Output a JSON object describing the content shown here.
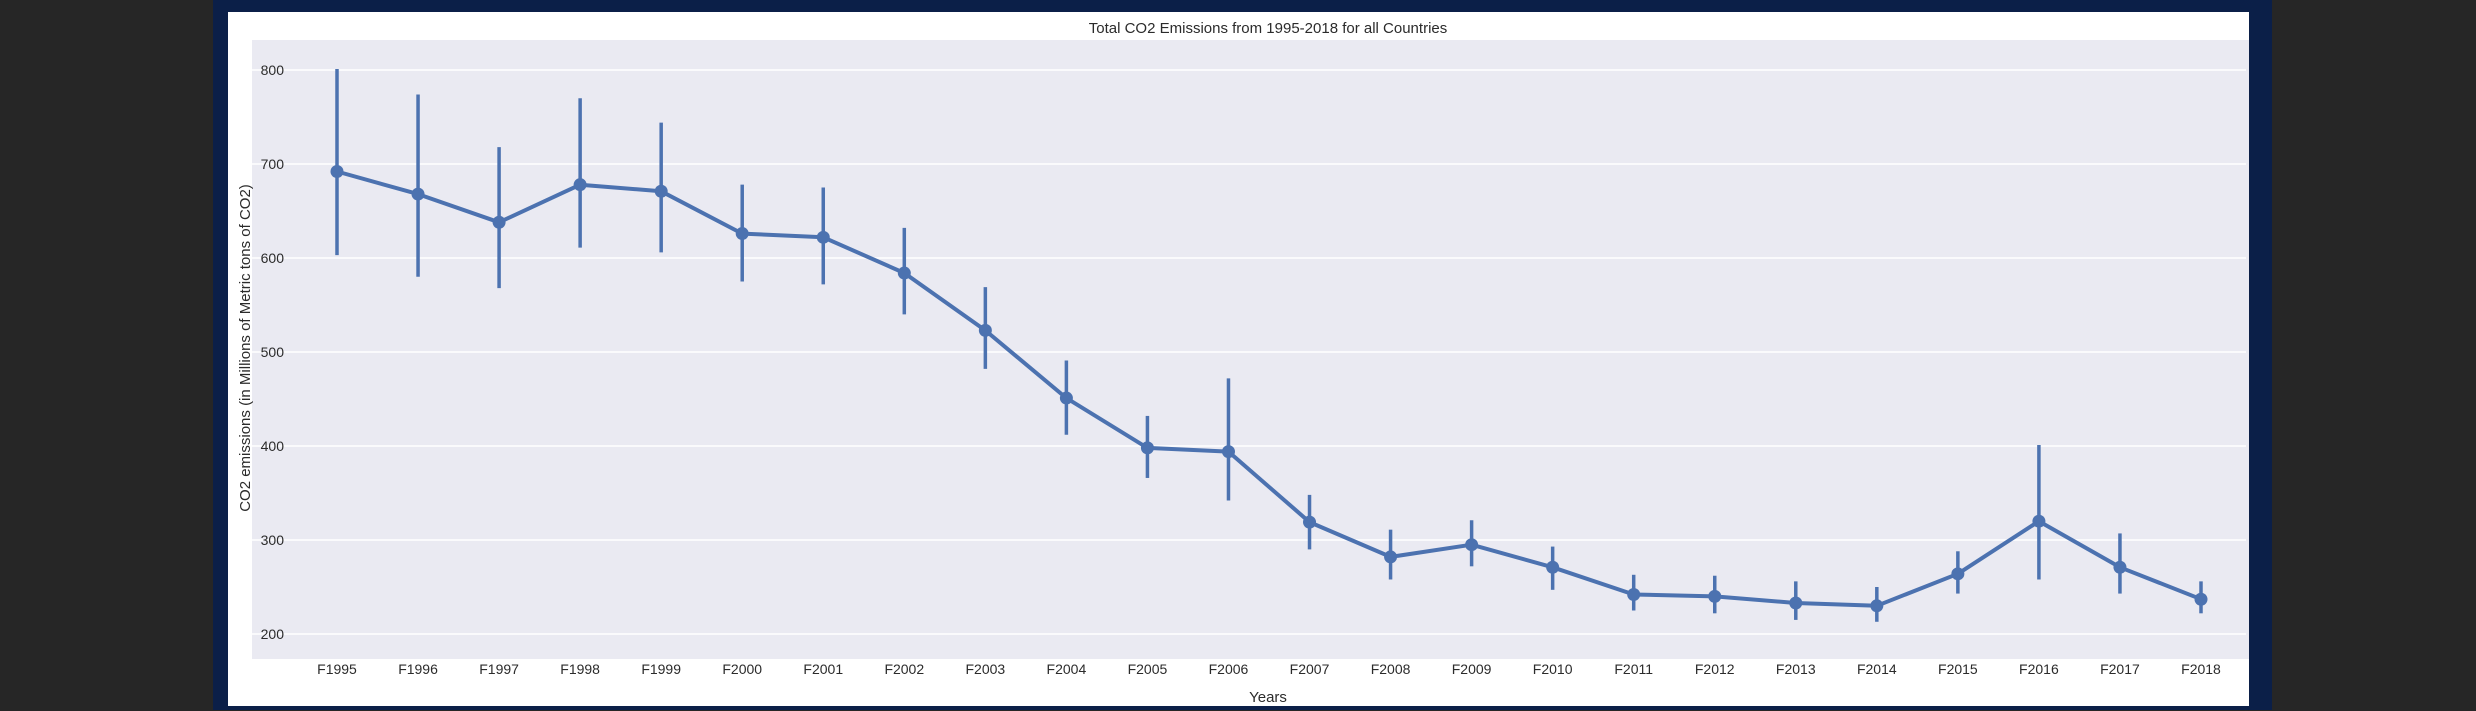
{
  "chart_data": {
    "type": "line",
    "title": "Total CO2 Emissions from 1995-2018 for all Countries",
    "xlabel": "Years",
    "ylabel": "CO2 emissions (in Millions of Metric tons of CO2)",
    "ylim": [
      185,
      815
    ],
    "yticks": [
      200,
      300,
      400,
      500,
      600,
      700,
      800
    ],
    "grid": true,
    "categories": [
      "F1995",
      "F1996",
      "F1997",
      "F1998",
      "F1999",
      "F2000",
      "F2001",
      "F2002",
      "F2003",
      "F2004",
      "F2005",
      "F2006",
      "F2007",
      "F2008",
      "F2009",
      "F2010",
      "F2011",
      "F2012",
      "F2013",
      "F2014",
      "F2015",
      "F2016",
      "F2017",
      "F2018"
    ],
    "series": [
      {
        "color": "#4c72b0",
        "values": [
          692,
          668,
          638,
          678,
          671,
          626,
          622,
          584,
          523,
          451,
          398,
          394,
          319,
          282,
          295,
          271,
          242,
          240,
          233,
          230,
          264,
          320,
          271,
          237
        ],
        "error_low": [
          603,
          580,
          568,
          611,
          606,
          575,
          572,
          540,
          482,
          412,
          366,
          342,
          290,
          258,
          272,
          247,
          225,
          222,
          215,
          213,
          243,
          258,
          243,
          222
        ],
        "error_high": [
          801,
          774,
          718,
          770,
          744,
          678,
          675,
          632,
          569,
          491,
          432,
          472,
          348,
          311,
          321,
          293,
          263,
          262,
          256,
          250,
          288,
          401,
          307,
          256
        ]
      }
    ]
  }
}
